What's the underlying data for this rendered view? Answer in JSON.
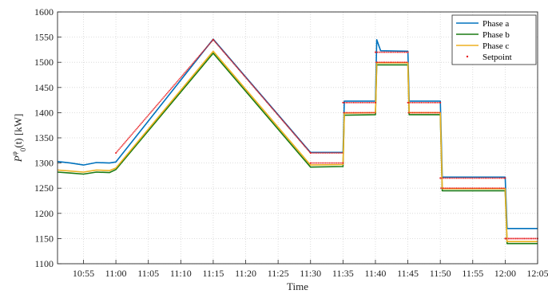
{
  "chart_data": {
    "type": "line",
    "title": "",
    "xlabel": "Time",
    "ylabel": "P_0^φ(t) [kW]",
    "ylabel_parts": {
      "main": "P",
      "sub": "0",
      "sup": "φ",
      "rest": "(t) [kW]"
    },
    "grid": true,
    "legend_position": "top-right",
    "x_unit": "HH:MM",
    "xlim": [
      "10:51",
      "12:05"
    ],
    "ylim": [
      1100,
      1600
    ],
    "x_ticks": [
      "10:55",
      "11:00",
      "11:05",
      "11:10",
      "11:15",
      "11:20",
      "11:25",
      "11:30",
      "11:35",
      "11:40",
      "11:45",
      "11:50",
      "11:55",
      "12:00",
      "12:05"
    ],
    "y_ticks": [
      1100,
      1150,
      1200,
      1250,
      1300,
      1350,
      1400,
      1450,
      1500,
      1550,
      1600
    ],
    "series": [
      {
        "name": "Phase a",
        "color": "#0072BD",
        "style": "line",
        "x": [
          "10:51",
          "10:53",
          "10:55",
          "10:57",
          "10:59",
          "11:00",
          "11:15",
          "11:30",
          "11:30.5",
          "11:35",
          "11:35.2",
          "11:40",
          "11:40.2",
          "11:40.8",
          "11:45",
          "11:45.2",
          "11:50",
          "11:50.3",
          "12:00",
          "12:00.3",
          "12:05"
        ],
        "values": [
          1303,
          1300,
          1296,
          1301,
          1300,
          1302,
          1546,
          1321,
          1321,
          1321,
          1423,
          1423,
          1545,
          1523,
          1522,
          1423,
          1423,
          1272,
          1272,
          1170,
          1170
        ]
      },
      {
        "name": "Phase b",
        "color": "#1a7a12",
        "style": "line",
        "x": [
          "10:51",
          "10:53",
          "10:55",
          "10:57",
          "10:59",
          "11:00",
          "11:15",
          "11:30",
          "11:35",
          "11:35.2",
          "11:40",
          "11:40.2",
          "11:45",
          "11:45.2",
          "11:50",
          "11:50.3",
          "12:00",
          "12:00.3",
          "12:05"
        ],
        "values": [
          1282,
          1280,
          1278,
          1282,
          1281,
          1287,
          1518,
          1292,
          1293,
          1395,
          1396,
          1495,
          1495,
          1396,
          1396,
          1245,
          1245,
          1140,
          1140
        ]
      },
      {
        "name": "Phase c",
        "color": "#EDB120",
        "style": "line",
        "x": [
          "10:51",
          "10:53",
          "10:55",
          "10:57",
          "10:59",
          "11:00",
          "11:15",
          "11:30",
          "11:35",
          "11:35.2",
          "11:40",
          "11:40.2",
          "11:45",
          "11:45.2",
          "11:50",
          "11:50.3",
          "12:00",
          "12:00.3",
          "12:05"
        ],
        "values": [
          1286,
          1284,
          1282,
          1286,
          1285,
          1290,
          1522,
          1296,
          1297,
          1399,
          1400,
          1499,
          1499,
          1400,
          1400,
          1249,
          1249,
          1144,
          1144
        ]
      },
      {
        "name": "Setpoint",
        "color": "#e8191c",
        "style": "points",
        "x": [
          "11:00",
          "11:15",
          "11:30",
          "11:30",
          "11:35",
          "11:35",
          "11:40",
          "11:40",
          "11:45",
          "11:45",
          "11:50",
          "11:50",
          "12:00",
          "12:00",
          "12:05"
        ],
        "values": [
          1320,
          1545,
          1320,
          1300,
          1300,
          1420,
          1420,
          1520,
          1520,
          1420,
          1420,
          1270,
          1270,
          1150,
          1150
        ],
        "segments": [
          {
            "label": "ramp",
            "x": [
              "11:00",
              "11:15",
              "11:30"
            ],
            "values": [
              1320,
              1545,
              1320
            ]
          },
          {
            "label": "s1a",
            "x": [
              "11:30",
              "11:35"
            ],
            "values": [
              1320,
              1320
            ]
          },
          {
            "label": "s1b",
            "x": [
              "11:30",
              "11:35"
            ],
            "values": [
              1300,
              1300
            ]
          },
          {
            "label": "s2a",
            "x": [
              "11:35",
              "11:40"
            ],
            "values": [
              1420,
              1420
            ]
          },
          {
            "label": "s2b",
            "x": [
              "11:35",
              "11:40"
            ],
            "values": [
              1400,
              1400
            ]
          },
          {
            "label": "s3a",
            "x": [
              "11:40",
              "11:45"
            ],
            "values": [
              1520,
              1520
            ]
          },
          {
            "label": "s3b",
            "x": [
              "11:40",
              "11:45"
            ],
            "values": [
              1500,
              1500
            ]
          },
          {
            "label": "s4a",
            "x": [
              "11:45",
              "11:50"
            ],
            "values": [
              1420,
              1420
            ]
          },
          {
            "label": "s4b",
            "x": [
              "11:45",
              "11:50"
            ],
            "values": [
              1400,
              1400
            ]
          },
          {
            "label": "s5a",
            "x": [
              "11:50",
              "12:00"
            ],
            "values": [
              1270,
              1270
            ]
          },
          {
            "label": "s5b",
            "x": [
              "11:50",
              "12:00"
            ],
            "values": [
              1250,
              1250
            ]
          },
          {
            "label": "s6a",
            "x": [
              "12:00",
              "12:05"
            ],
            "values": [
              1150,
              1150
            ]
          },
          {
            "label": "s6b",
            "x": [
              "12:00",
              "12:05"
            ],
            "values": [
              1150,
              1150
            ]
          }
        ]
      }
    ]
  }
}
